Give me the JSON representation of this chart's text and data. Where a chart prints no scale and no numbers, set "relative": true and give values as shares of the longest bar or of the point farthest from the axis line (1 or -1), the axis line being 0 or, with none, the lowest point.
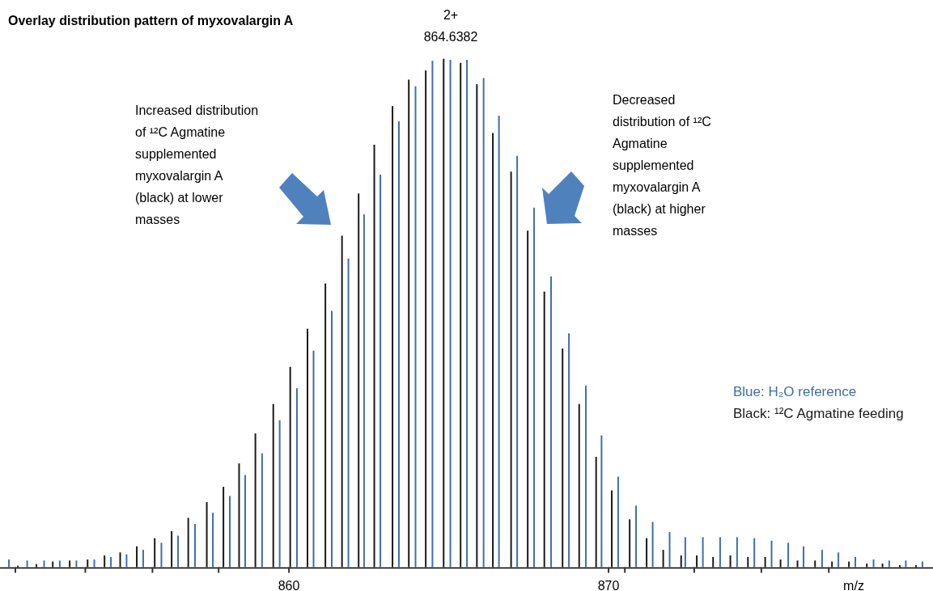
{
  "chart_data": {
    "type": "bar",
    "title": "Overlay distribution pattern of myxovalargin A",
    "xlabel": "m/z",
    "relative": true,
    "legend": "right",
    "xlim": [
      850.96,
      880.15
    ],
    "xticks": [
      {
        "value": 851.44,
        "label": null
      },
      {
        "value": 853.63,
        "label": null
      },
      {
        "value": 855.73,
        "label": null
      },
      {
        "value": 857.8,
        "label": null
      },
      860,
      870,
      {
        "value": 870.51,
        "label": null
      },
      {
        "value": 872.68,
        "label": null
      },
      {
        "value": 874.78,
        "label": null
      },
      {
        "value": 876.89,
        "label": null
      }
    ],
    "annotations": [
      "2+\n864.6382",
      "Increased distribution\nof ¹²C Agmatine\nsupplemented\nmyxovalargin A\n(black) at lower\nmasses",
      "Decreased\ndistribution of ¹²C\nAgmatine\nsupplemented\nmyxovalargin A\n(black) at higher\nmasses"
    ],
    "series": [
      {
        "name": "Blue: H₂O reference",
        "color": "#3f6faa",
        "x": [
          851.24,
          851.81,
          852.34,
          852.83,
          853.35,
          853.91,
          854.43,
          854.92,
          855.44,
          856.01,
          856.53,
          857.06,
          857.62,
          858.15,
          858.63,
          859.16,
          859.71,
          860.25,
          860.77,
          861.34,
          861.86,
          862.35,
          862.86,
          863.44,
          863.96,
          864.49,
          865.05,
          865.57,
          866.09,
          866.57,
          867.14,
          867.67,
          868.2,
          868.76,
          869.29,
          869.78,
          870.3,
          870.86,
          871.38,
          871.91,
          872.4,
          872.95,
          873.49,
          874.02,
          874.56,
          875.1,
          875.62,
          876.1,
          876.68,
          877.19,
          877.72,
          878.29,
          878.78,
          879.3,
          879.82
        ],
        "values": [
          0.015,
          0.013,
          0.013,
          0.013,
          0.013,
          0.015,
          0.02,
          0.025,
          0.034,
          0.048,
          0.062,
          0.085,
          0.107,
          0.14,
          0.181,
          0.224,
          0.289,
          0.352,
          0.426,
          0.504,
          0.607,
          0.694,
          0.772,
          0.877,
          0.946,
          0.996,
          0.998,
          0.998,
          0.962,
          0.888,
          0.809,
          0.707,
          0.572,
          0.46,
          0.357,
          0.259,
          0.178,
          0.121,
          0.089,
          0.069,
          0.059,
          0.059,
          0.059,
          0.059,
          0.057,
          0.052,
          0.048,
          0.041,
          0.034,
          0.029,
          0.02,
          0.015,
          0.013,
          0.013,
          0.011
        ]
      },
      {
        "name": "Black: ¹²C Agmatine feeding",
        "color": "#1a1a1a",
        "x": [
          851.52,
          852.1,
          852.61,
          853.14,
          853.7,
          854.23,
          854.72,
          855.24,
          855.8,
          856.33,
          856.85,
          857.43,
          857.95,
          858.44,
          858.95,
          859.51,
          860.04,
          860.58,
          861.14,
          861.66,
          862.18,
          862.67,
          863.24,
          863.75,
          864.28,
          864.84,
          865.37,
          865.88,
          866.38,
          866.95,
          867.47,
          867.99,
          868.56,
          869.08,
          869.61,
          870.1,
          870.66,
          871.19,
          871.71,
          872.27,
          872.76,
          873.27,
          873.81,
          874.36,
          874.9,
          875.38,
          875.91,
          876.46,
          876.99,
          877.52,
          878.08,
          878.57,
          879.11,
          879.62
        ],
        "values": [
          0.003,
          0.006,
          0.011,
          0.013,
          0.015,
          0.023,
          0.029,
          0.041,
          0.057,
          0.071,
          0.097,
          0.128,
          0.158,
          0.204,
          0.263,
          0.321,
          0.394,
          0.469,
          0.558,
          0.652,
          0.735,
          0.831,
          0.907,
          0.959,
          0.977,
          1,
          0.992,
          0.95,
          0.854,
          0.778,
          0.662,
          0.542,
          0.43,
          0.321,
          0.217,
          0.151,
          0.094,
          0.057,
          0.034,
          0.023,
          0.023,
          0.02,
          0.023,
          0.02,
          0.02,
          0.015,
          0.013,
          0.013,
          0.011,
          0.011,
          0.007,
          0.007,
          0.004,
          0.004
        ]
      }
    ]
  }
}
